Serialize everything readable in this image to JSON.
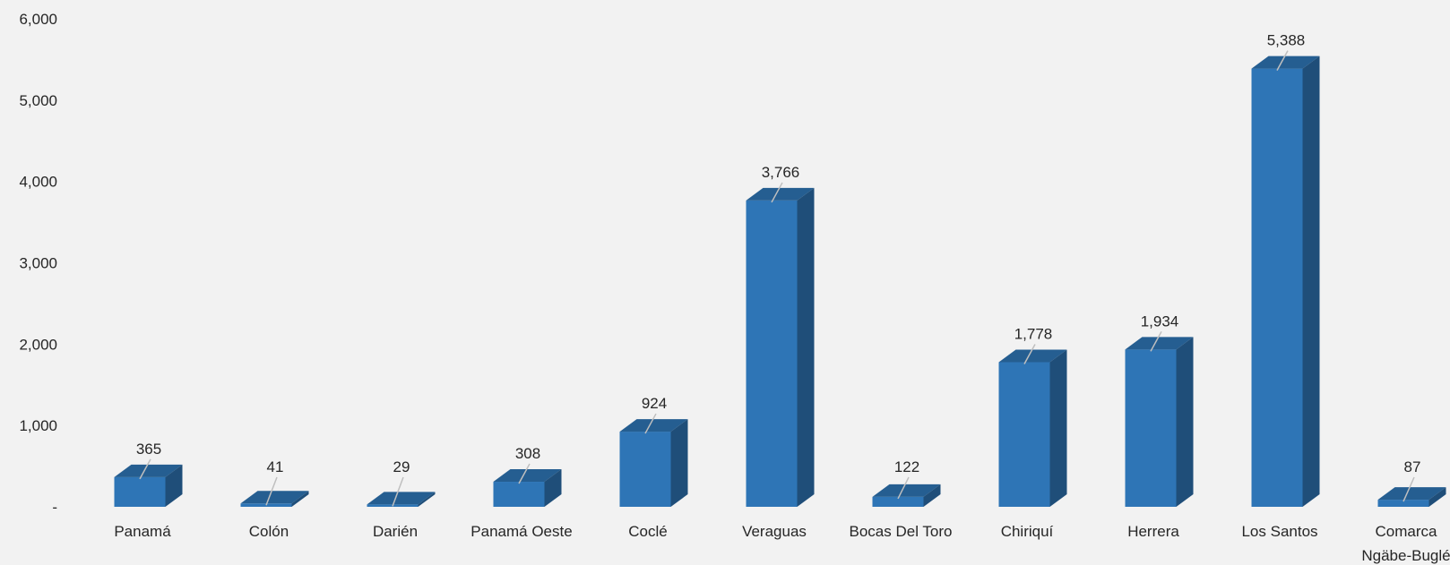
{
  "chart_data": {
    "type": "bar",
    "title": "",
    "xlabel": "",
    "ylabel": "",
    "ylim": [
      0,
      6000
    ],
    "y_ticks": [
      {
        "value": 0,
        "label": "-"
      },
      {
        "value": 1000,
        "label": "1,000"
      },
      {
        "value": 2000,
        "label": "2,000"
      },
      {
        "value": 3000,
        "label": "3,000"
      },
      {
        "value": 4000,
        "label": "4,000"
      },
      {
        "value": 5000,
        "label": "5,000"
      },
      {
        "value": 6000,
        "label": "6,000"
      }
    ],
    "categories": [
      [
        "Panamá"
      ],
      [
        "Colón"
      ],
      [
        "Darién"
      ],
      [
        "Panamá Oeste"
      ],
      [
        "Coclé"
      ],
      [
        "Veraguas"
      ],
      [
        "Bocas Del Toro"
      ],
      [
        "Chiriquí"
      ],
      [
        "Herrera"
      ],
      [
        "Los Santos"
      ],
      [
        "Comarca",
        "Ngäbe-Buglé"
      ]
    ],
    "values": [
      365,
      41,
      29,
      308,
      924,
      3766,
      122,
      1778,
      1934,
      5388,
      87
    ],
    "value_labels": [
      "365",
      "41",
      "29",
      "308",
      "924",
      "3,766",
      "122",
      "1,778",
      "1,934",
      "5,388",
      "87"
    ],
    "grid": false,
    "legend": "none",
    "style": "3d-column",
    "colors": {
      "front": "#2e75b6",
      "top": "#255e91",
      "side": "#1f4e79",
      "leader": "#bfbfbf",
      "text": "#262626",
      "background": "#f2f2f2"
    }
  }
}
